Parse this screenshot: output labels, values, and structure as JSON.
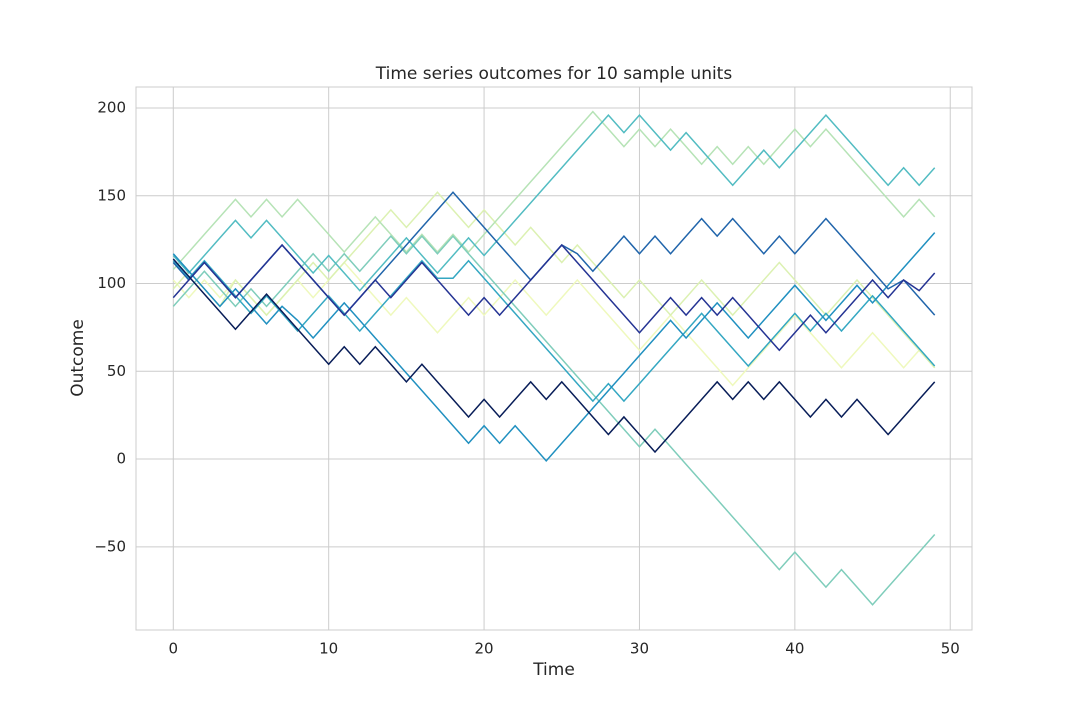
{
  "chart_data": {
    "type": "line",
    "title": "Time series outcomes for 10 sample units",
    "xlabel": "Time",
    "ylabel": "Outcome",
    "x": [
      0,
      1,
      2,
      3,
      4,
      5,
      6,
      7,
      8,
      9,
      10,
      11,
      12,
      13,
      14,
      15,
      16,
      17,
      18,
      19,
      20,
      21,
      22,
      23,
      24,
      25,
      26,
      27,
      28,
      29,
      30,
      31,
      32,
      33,
      34,
      35,
      36,
      37,
      38,
      39,
      40,
      41,
      42,
      43,
      44,
      45,
      46,
      47,
      48,
      49
    ],
    "xlim": [
      -2.4,
      51.4
    ],
    "xticks": [
      0,
      10,
      20,
      30,
      40,
      50
    ],
    "ylim": [
      -97.4,
      212
    ],
    "yticks": [
      {
        "value": -50,
        "label": "−50"
      },
      0,
      50,
      100,
      150,
      200
    ],
    "grid": true,
    "series": [
      {
        "color": "#eff9bd",
        "values": [
          102,
          92,
          102,
          92,
          102,
          92,
          82,
          92,
          102,
          92,
          102,
          112,
          102,
          92,
          82,
          92,
          82,
          72,
          82,
          92,
          82,
          92,
          102,
          92,
          82,
          92,
          102,
          92,
          82,
          72,
          62,
          72,
          82,
          72,
          62,
          52,
          42,
          52,
          62,
          72,
          82,
          72,
          62,
          52,
          62,
          72,
          62,
          52,
          62,
          52
        ]
      },
      {
        "color": "#dcf1b2",
        "values": [
          97,
          107,
          97,
          87,
          102,
          92,
          82,
          92,
          102,
          112,
          102,
          112,
          122,
          132,
          142,
          132,
          142,
          152,
          142,
          132,
          142,
          132,
          122,
          132,
          122,
          112,
          122,
          112,
          102,
          92,
          102,
          92,
          82,
          92,
          102,
          92,
          82,
          92,
          102,
          112,
          102,
          92,
          82,
          92,
          102,
          92,
          82,
          72,
          62,
          52
        ]
      },
      {
        "color": "#b6e3b6",
        "values": [
          108,
          118,
          128,
          138,
          148,
          138,
          148,
          138,
          148,
          138,
          128,
          118,
          128,
          138,
          128,
          118,
          128,
          118,
          128,
          118,
          128,
          138,
          148,
          158,
          168,
          178,
          188,
          198,
          188,
          178,
          188,
          178,
          188,
          178,
          168,
          178,
          168,
          178,
          168,
          178,
          188,
          178,
          188,
          178,
          168,
          158,
          148,
          138,
          148,
          138
        ]
      },
      {
        "color": "#7fcdbb",
        "values": [
          87,
          97,
          107,
          97,
          87,
          97,
          87,
          97,
          107,
          117,
          107,
          117,
          107,
          117,
          127,
          117,
          127,
          117,
          127,
          117,
          107,
          97,
          87,
          77,
          67,
          57,
          47,
          37,
          27,
          17,
          7,
          17,
          7,
          -3,
          -13,
          -23,
          -33,
          -43,
          -53,
          -63,
          -53,
          -63,
          -73,
          -63,
          -73,
          -83,
          -73,
          -63,
          -53,
          -43
        ]
      },
      {
        "color": "#52bcc2",
        "values": [
          116,
          106,
          116,
          126,
          136,
          126,
          136,
          126,
          116,
          106,
          116,
          106,
          96,
          106,
          116,
          126,
          116,
          106,
          116,
          126,
          116,
          126,
          136,
          146,
          156,
          166,
          176,
          186,
          196,
          186,
          196,
          186,
          176,
          186,
          176,
          166,
          156,
          166,
          176,
          166,
          176,
          186,
          196,
          186,
          176,
          166,
          156,
          166,
          156,
          166
        ]
      },
      {
        "color": "#34a7c2",
        "values": [
          113,
          103,
          113,
          103,
          93,
          83,
          93,
          83,
          73,
          83,
          93,
          83,
          73,
          83,
          93,
          103,
          113,
          103,
          103,
          113,
          103,
          93,
          83,
          73,
          63,
          53,
          43,
          33,
          43,
          33,
          43,
          53,
          63,
          73,
          83,
          73,
          63,
          53,
          63,
          73,
          83,
          73,
          83,
          73,
          83,
          93,
          83,
          73,
          63,
          53
        ]
      },
      {
        "color": "#2090c0",
        "values": [
          117,
          107,
          97,
          87,
          97,
          87,
          77,
          87,
          79,
          69,
          79,
          89,
          79,
          69,
          59,
          49,
          39,
          29,
          19,
          9,
          19,
          9,
          19,
          9,
          -1,
          9,
          19,
          29,
          39,
          49,
          59,
          69,
          79,
          69,
          79,
          89,
          79,
          69,
          79,
          89,
          99,
          89,
          79,
          89,
          99,
          89,
          99,
          109,
          119,
          129
        ]
      },
      {
        "color": "#2165ab",
        "values": [
          112,
          102,
          112,
          102,
          92,
          102,
          112,
          122,
          112,
          102,
          92,
          82,
          92,
          102,
          112,
          122,
          132,
          142,
          152,
          142,
          132,
          122,
          112,
          102,
          112,
          122,
          117,
          107,
          117,
          127,
          117,
          127,
          117,
          127,
          137,
          127,
          137,
          127,
          117,
          127,
          117,
          127,
          137,
          127,
          117,
          107,
          97,
          102,
          92,
          82
        ]
      },
      {
        "color": "#253494",
        "values": [
          92,
          102,
          112,
          102,
          92,
          102,
          112,
          122,
          112,
          102,
          92,
          82,
          92,
          102,
          92,
          102,
          112,
          102,
          92,
          82,
          92,
          82,
          92,
          102,
          112,
          122,
          112,
          102,
          92,
          82,
          72,
          82,
          92,
          82,
          92,
          82,
          92,
          82,
          72,
          62,
          72,
          82,
          72,
          82,
          92,
          102,
          92,
          102,
          96,
          106
        ]
      },
      {
        "color": "#081d58",
        "values": [
          114,
          104,
          94,
          84,
          74,
          84,
          94,
          84,
          74,
          64,
          54,
          64,
          54,
          64,
          54,
          44,
          54,
          44,
          34,
          24,
          34,
          24,
          34,
          44,
          34,
          44,
          34,
          24,
          14,
          24,
          14,
          4,
          14,
          24,
          34,
          44,
          34,
          44,
          34,
          44,
          34,
          24,
          34,
          24,
          34,
          24,
          14,
          24,
          34,
          44
        ]
      }
    ]
  }
}
